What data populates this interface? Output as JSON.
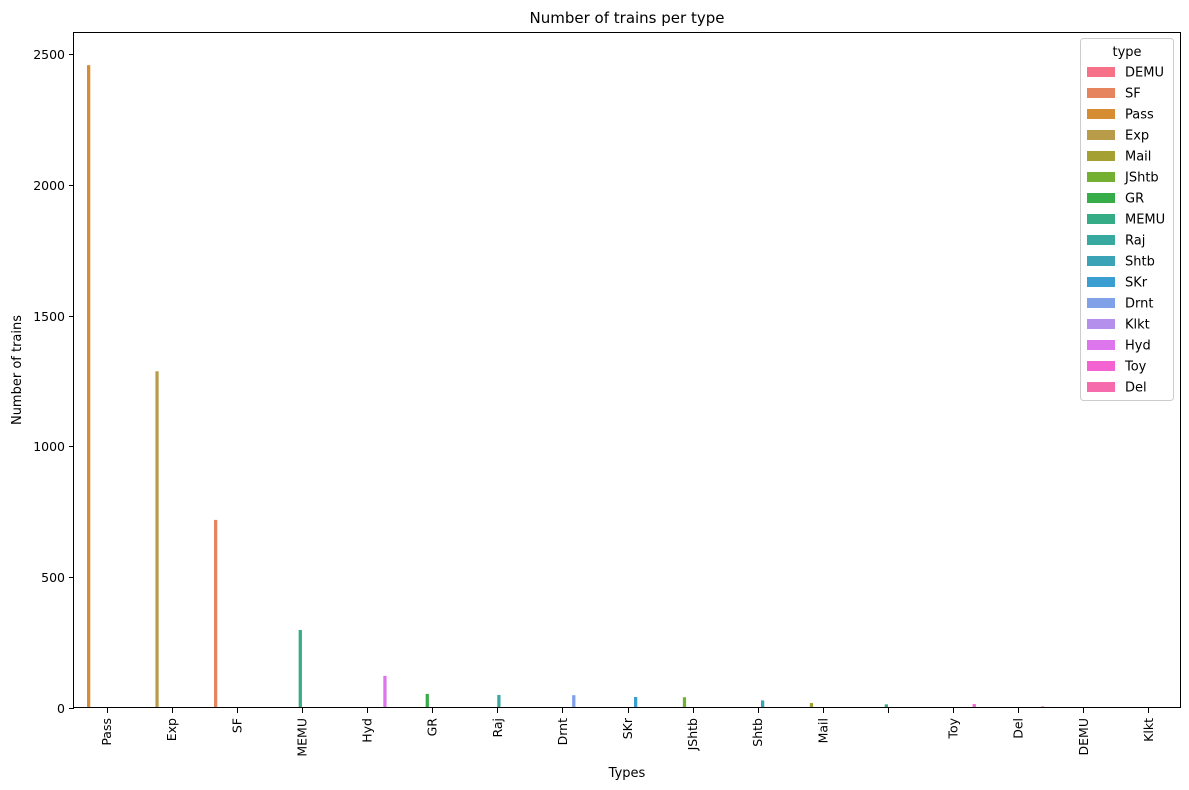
{
  "chart_data": {
    "type": "bar",
    "title": "Number of trains per type",
    "xlabel": "Types",
    "ylabel": "Number of trains",
    "ylim": [
      0,
      2580
    ],
    "yticks": [
      0,
      500,
      1000,
      1500,
      2000,
      2500
    ],
    "categories": [
      "Pass",
      "Exp",
      "SF",
      "MEMU",
      "Hyd",
      "GR",
      "Raj",
      "Drnt",
      "SKr",
      "JShtb",
      "Shtb",
      "Mail",
      "",
      "Toy",
      "Del",
      "DEMU",
      "Klkt"
    ],
    "legend_title": "type",
    "legend_position": "top-right",
    "hue_order": [
      "DEMU",
      "SF",
      "Pass",
      "Exp",
      "Mail",
      "JShtb",
      "GR",
      "MEMU",
      "Raj",
      "Shtb",
      "SKr",
      "Drnt",
      "Klkt",
      "Hyd",
      "Toy",
      "Del"
    ],
    "colors": {
      "DEMU": "#f77189",
      "SF": "#e6845e",
      "Pass": "#d58c32",
      "Exp": "#b89c49",
      "Mail": "#a4a031",
      "JShtb": "#73b032",
      "GR": "#36ad48",
      "MEMU": "#35ac86",
      "Raj": "#38a99f",
      "Shtb": "#3ba3b6",
      "SKr": "#3b9ed1",
      "Drnt": "#80a0e8",
      "Klkt": "#b490ec",
      "Hyd": "#dd75ed",
      "Toy": "#f364d2",
      "Del": "#f66bab"
    },
    "bars": [
      {
        "category": "Pass",
        "series": "Pass",
        "value": 2457
      },
      {
        "category": "Exp",
        "series": "Exp",
        "value": 1287
      },
      {
        "category": "SF",
        "series": "SF",
        "value": 719
      },
      {
        "category": "MEMU",
        "series": "MEMU",
        "value": 298
      },
      {
        "category": "Hyd",
        "series": "Hyd",
        "value": 123
      },
      {
        "category": "GR",
        "series": "GR",
        "value": 54
      },
      {
        "category": "Raj",
        "series": "Raj",
        "value": 50
      },
      {
        "category": "Drnt",
        "series": "Drnt",
        "value": 49
      },
      {
        "category": "SKr",
        "series": "SKr",
        "value": 42
      },
      {
        "category": "JShtb",
        "series": "JShtb",
        "value": 41
      },
      {
        "category": "Shtb",
        "series": "Shtb",
        "value": 29
      },
      {
        "category": "Mail",
        "series": "Mail",
        "value": 19
      },
      {
        "category": "",
        "series": "MEMU",
        "value": 14
      },
      {
        "category": "Toy",
        "series": "Toy",
        "value": 15
      },
      {
        "category": "Del",
        "series": "Del",
        "value": 6
      },
      {
        "category": "DEMU",
        "series": "DEMU",
        "value": 3
      },
      {
        "category": "Klkt",
        "series": "Klkt",
        "value": 2
      }
    ]
  }
}
